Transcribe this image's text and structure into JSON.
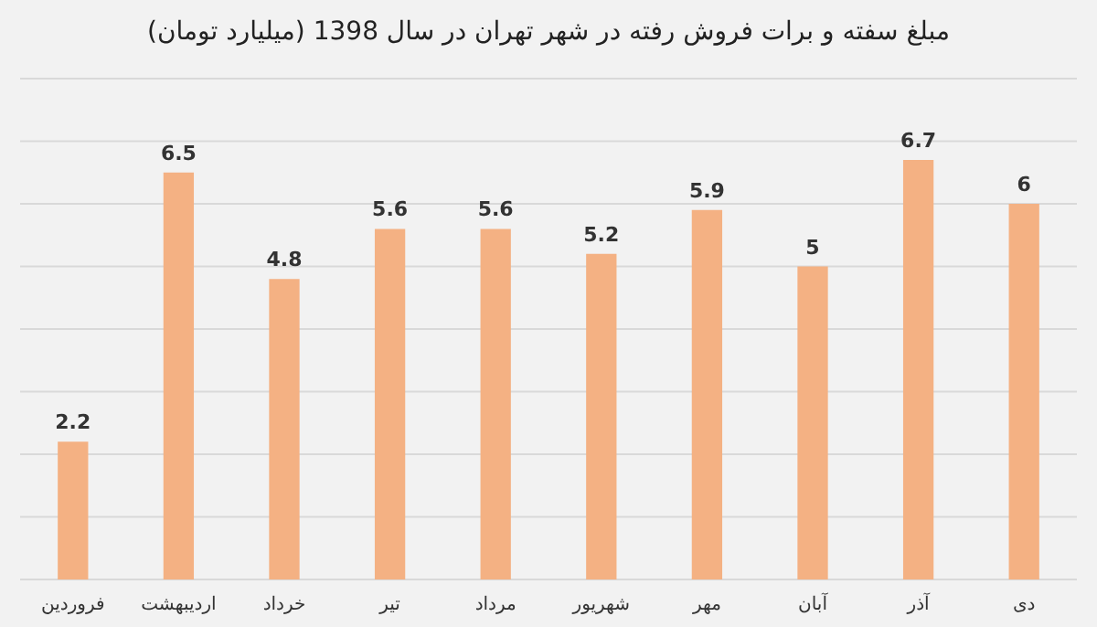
{
  "chart_data": {
    "type": "bar",
    "title": "مبلغ سفته و برات فروش رفته در شهر تهران در سال 1398 (میلیارد تومان)",
    "categories": [
      "فروردین",
      "اردیبهشت",
      "خرداد",
      "تیر",
      "مرداد",
      "شهریور",
      "مهر",
      "آبان",
      "آذر",
      "دی"
    ],
    "values": [
      2.2,
      6.5,
      4.8,
      5.6,
      5.6,
      5.2,
      5.9,
      5,
      6.7,
      6
    ],
    "color": "#f4b183",
    "ylim": [
      0,
      8
    ],
    "yticks": [
      {
        "value": 0,
        "label": null
      },
      {
        "value": 1,
        "label": null
      },
      {
        "value": 2,
        "label": null
      },
      {
        "value": 3,
        "label": null
      },
      {
        "value": 4,
        "label": null
      },
      {
        "value": 5,
        "label": null
      },
      {
        "value": 6,
        "label": null
      },
      {
        "value": 7,
        "label": null
      },
      {
        "value": 8,
        "label": null
      }
    ],
    "tick_labels": "x",
    "grid": "y",
    "data_labels": true
  }
}
